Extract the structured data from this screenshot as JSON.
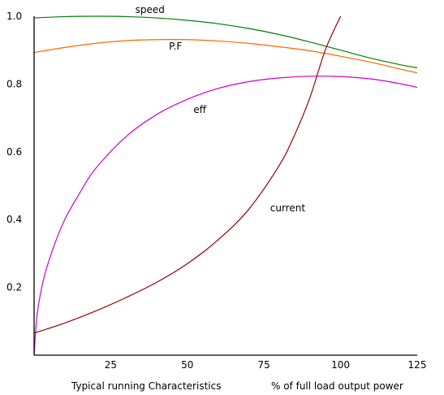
{
  "chart_data": {
    "type": "line",
    "title": "",
    "xlabel": "% of full load output power",
    "caption": "Typical running Characteristics",
    "xlim": [
      0,
      125
    ],
    "ylim": [
      0,
      1.0
    ],
    "x_ticks": [
      "25",
      "50",
      "75",
      "100",
      "125"
    ],
    "x_tick_values": [
      25,
      50,
      75,
      100,
      125
    ],
    "y_ticks": [
      "0.2",
      "0.4",
      "0.6",
      "0.8",
      "1.0"
    ],
    "y_tick_values": [
      0.2,
      0.4,
      0.6,
      0.8,
      1.0
    ],
    "grid": false,
    "series": [
      {
        "name": "speed",
        "color": "#008000",
        "x": [
          0,
          10,
          20,
          30,
          40,
          50,
          60,
          70,
          80,
          90,
          100,
          110,
          120,
          125
        ],
        "y": [
          0.995,
          0.999,
          1.0,
          0.999,
          0.995,
          0.988,
          0.978,
          0.964,
          0.946,
          0.924,
          0.9,
          0.876,
          0.856,
          0.848
        ]
      },
      {
        "name": "P.F",
        "color": "#ff6600",
        "x": [
          0,
          10,
          20,
          30,
          40,
          50,
          60,
          70,
          80,
          90,
          100,
          110,
          120,
          125
        ],
        "y": [
          0.893,
          0.908,
          0.92,
          0.928,
          0.931,
          0.931,
          0.927,
          0.92,
          0.91,
          0.898,
          0.882,
          0.864,
          0.843,
          0.833
        ]
      },
      {
        "name": "eff",
        "color": "#cc00cc",
        "x": [
          0,
          1,
          3,
          6,
          10,
          15,
          20,
          30,
          40,
          50,
          60,
          70,
          80,
          90,
          100,
          110,
          120,
          125
        ],
        "y": [
          0.0,
          0.12,
          0.22,
          0.31,
          0.4,
          0.48,
          0.55,
          0.645,
          0.71,
          0.755,
          0.787,
          0.807,
          0.818,
          0.823,
          0.822,
          0.815,
          0.8,
          0.79
        ]
      },
      {
        "name": "current",
        "color": "#990000",
        "x": [
          0,
          10,
          20,
          30,
          40,
          50,
          60,
          70,
          80,
          85,
          90,
          95,
          100
        ],
        "y": [
          0.065,
          0.095,
          0.13,
          0.17,
          0.215,
          0.27,
          0.34,
          0.43,
          0.56,
          0.65,
          0.76,
          0.9,
          1.0
        ]
      }
    ],
    "annotations": [
      {
        "text": "speed",
        "x": 33,
        "y": 1.01
      },
      {
        "text": "P.F",
        "x": 44,
        "y": 0.902
      },
      {
        "text": "eff",
        "x": 52,
        "y": 0.715
      },
      {
        "text": "current",
        "x": 77,
        "y": 0.425
      }
    ]
  }
}
